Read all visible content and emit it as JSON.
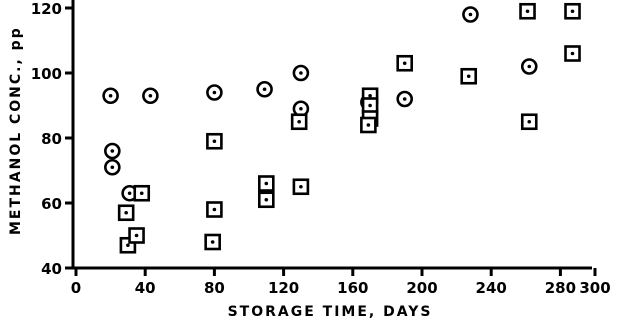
{
  "chart_data": {
    "type": "scatter",
    "title": "",
    "xlabel": "STORAGE TIME, DAYS",
    "ylabel": "METHANOL CONC., pp",
    "xlim": [
      0,
      300
    ],
    "ylim": [
      40,
      120
    ],
    "xticks": [
      0,
      40,
      80,
      120,
      160,
      200,
      240,
      280,
      300
    ],
    "yticks": [
      40,
      60,
      80,
      100,
      120
    ],
    "grid": false,
    "series": [
      {
        "marker": "circle",
        "points": [
          {
            "x": 20,
            "y": 93
          },
          {
            "x": 21,
            "y": 76
          },
          {
            "x": 21,
            "y": 71
          },
          {
            "x": 31,
            "y": 63
          },
          {
            "x": 43,
            "y": 93
          },
          {
            "x": 80,
            "y": 94
          },
          {
            "x": 109,
            "y": 95
          },
          {
            "x": 130,
            "y": 100
          },
          {
            "x": 130,
            "y": 89
          },
          {
            "x": 169,
            "y": 91
          },
          {
            "x": 190,
            "y": 92
          },
          {
            "x": 228,
            "y": 118
          },
          {
            "x": 262,
            "y": 102
          }
        ]
      },
      {
        "marker": "square",
        "points": [
          {
            "x": 29,
            "y": 57
          },
          {
            "x": 30,
            "y": 47
          },
          {
            "x": 35,
            "y": 50
          },
          {
            "x": 38,
            "y": 63
          },
          {
            "x": 80,
            "y": 79
          },
          {
            "x": 80,
            "y": 58
          },
          {
            "x": 79,
            "y": 48
          },
          {
            "x": 110,
            "y": 66
          },
          {
            "x": 110,
            "y": 61
          },
          {
            "x": 129,
            "y": 85
          },
          {
            "x": 130,
            "y": 65
          },
          {
            "x": 170,
            "y": 93
          },
          {
            "x": 170,
            "y": 90
          },
          {
            "x": 170,
            "y": 86
          },
          {
            "x": 169,
            "y": 84
          },
          {
            "x": 190,
            "y": 103
          },
          {
            "x": 227,
            "y": 99
          },
          {
            "x": 261,
            "y": 119
          },
          {
            "x": 262,
            "y": 85
          },
          {
            "x": 287,
            "y": 119
          },
          {
            "x": 287,
            "y": 106
          }
        ]
      }
    ]
  }
}
